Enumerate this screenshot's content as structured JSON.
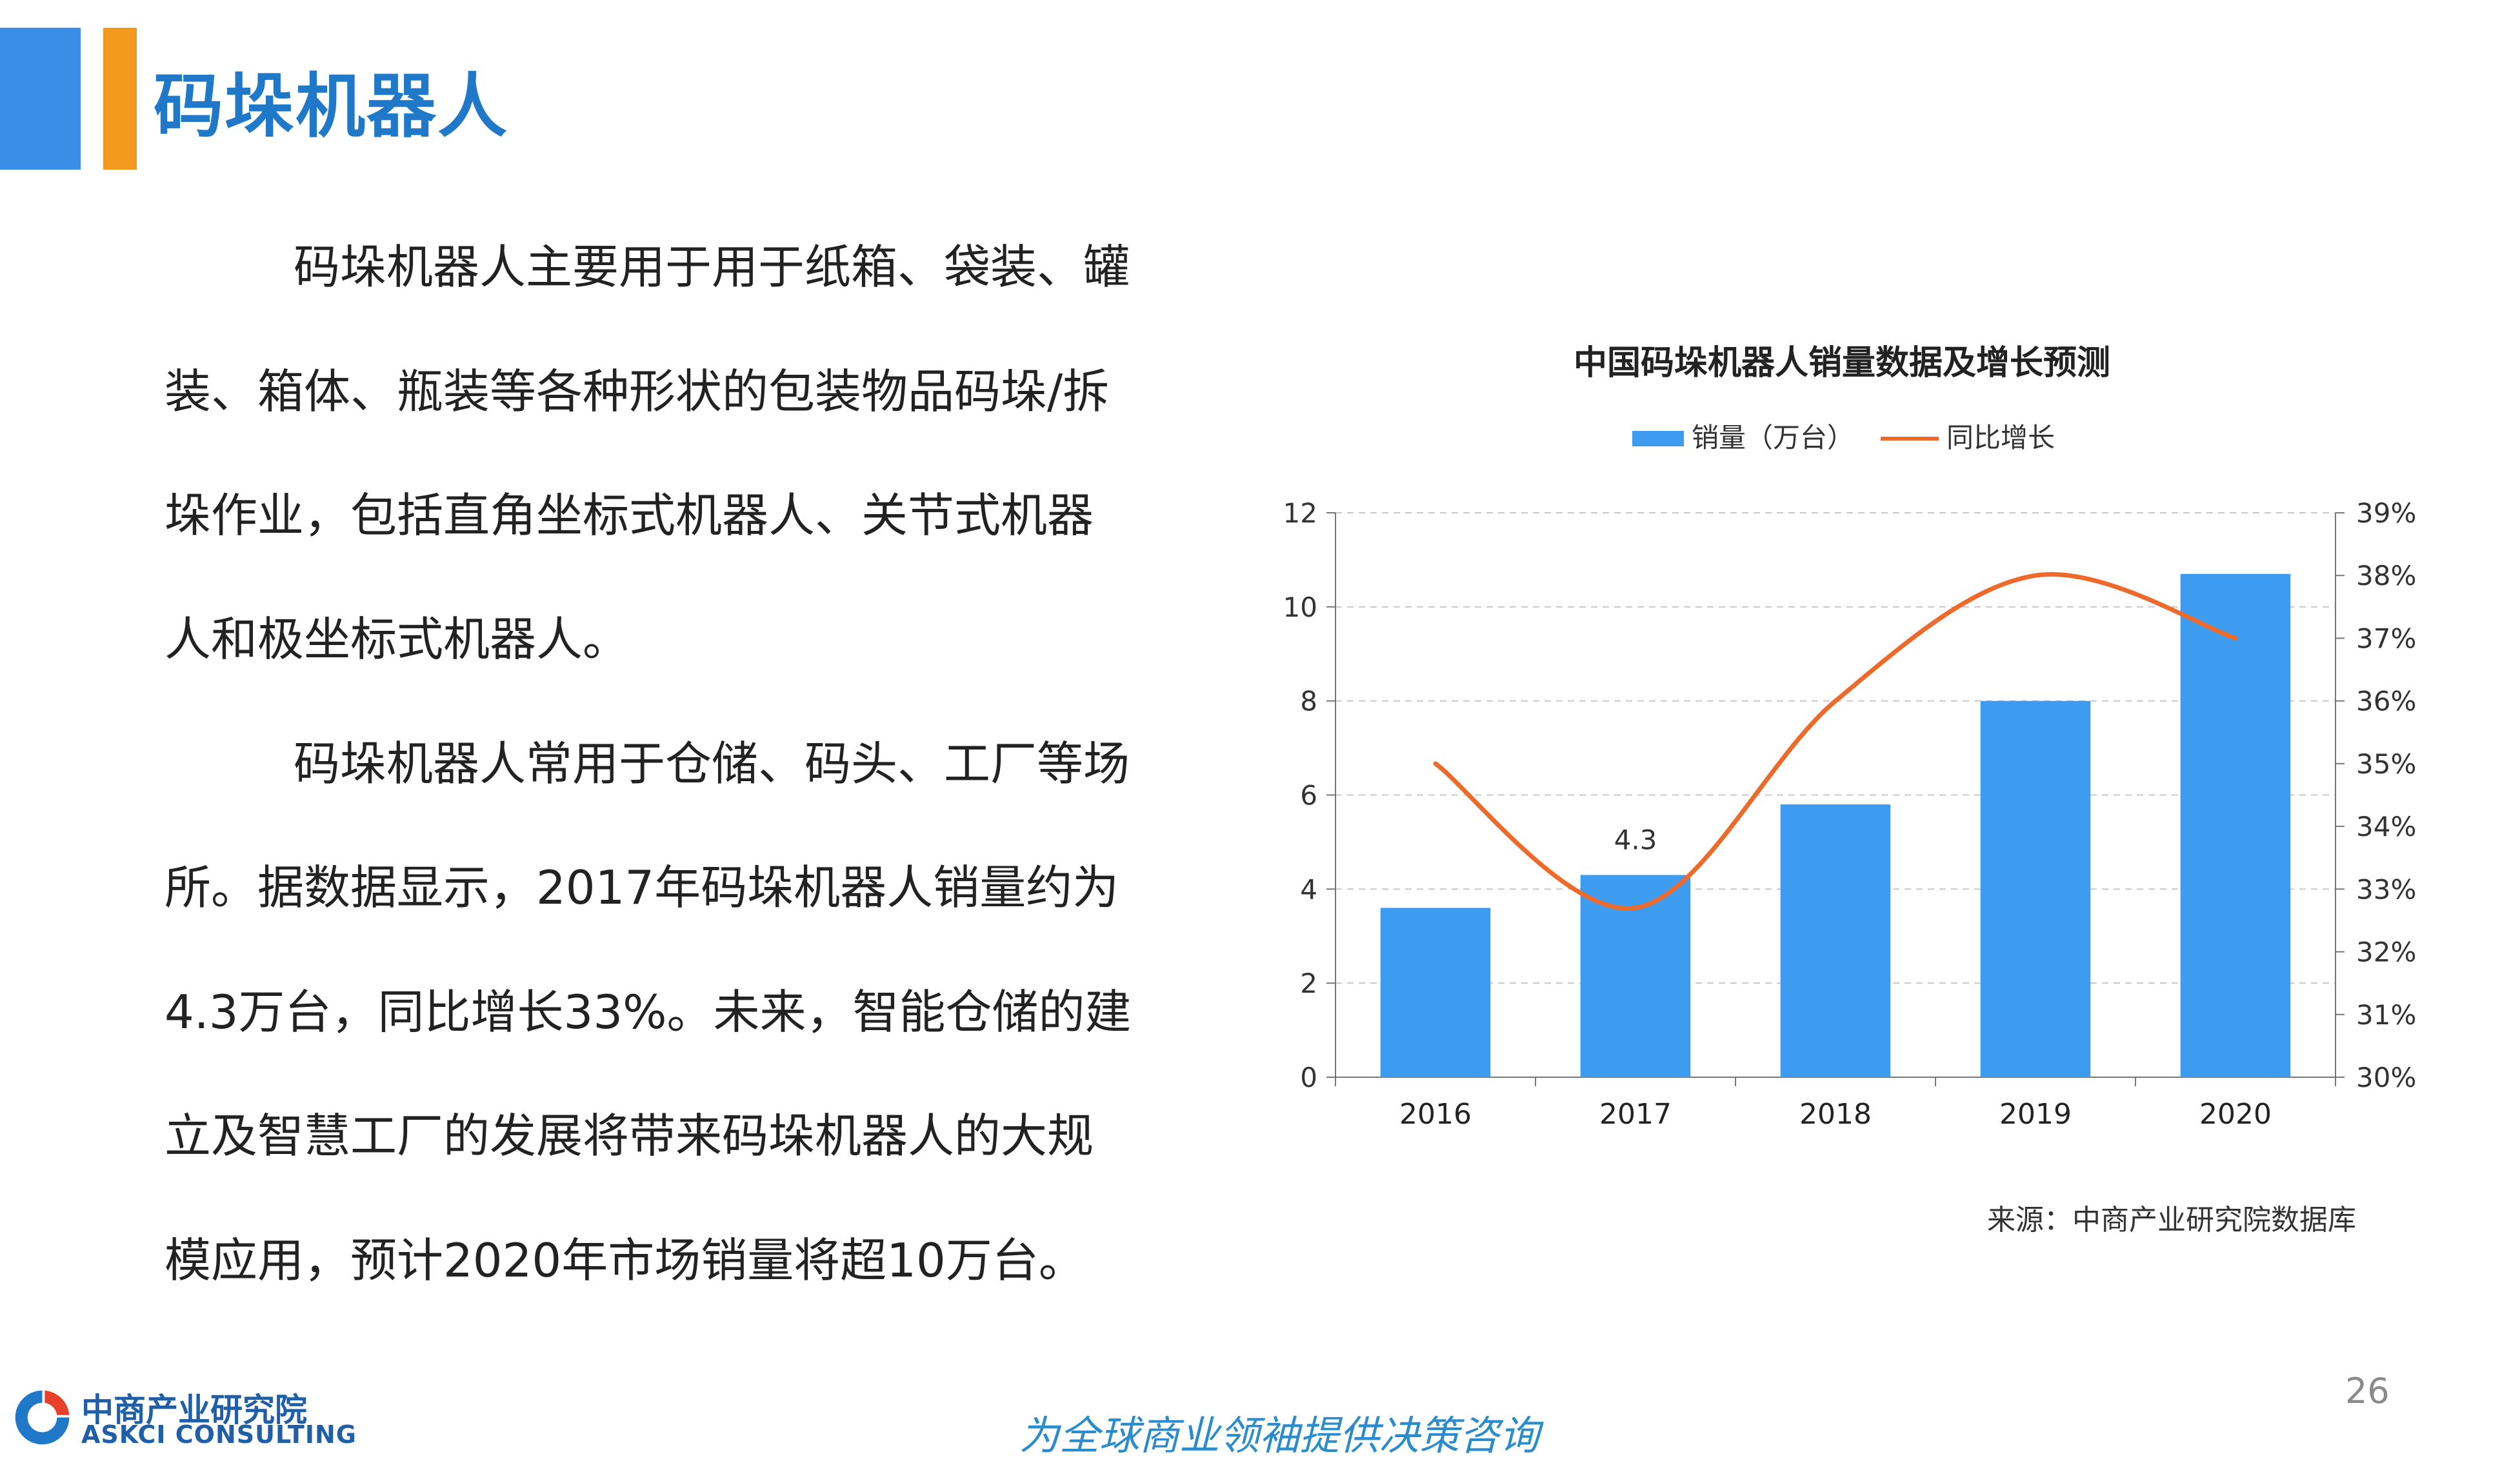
{
  "slide": {
    "title": "码垛机器人",
    "paragraphs": [
      "码垛机器人主要用于用于纸箱、袋装、罐",
      "装、箱体、瓶装等各种形状的包装物品码垛/拆",
      "垛作业，包括直角坐标式机器人、关节式机器",
      "人和极坐标式机器人。",
      "码垛机器人常用于仓储、码头、工厂等场",
      "所。据数据显示，2017年码垛机器人销量约为",
      "4.3万台，同比增长33%。未来，智能仓储的建",
      "立及智慧工厂的发展将带来码垛机器人的大规",
      "模应用，预计2020年市场销量将超10万台。"
    ],
    "source": "来源：中商产业研究院数据库",
    "page_number": "26",
    "slogan": "为全球商业领袖提供决策咨询",
    "logo_cn": "中商产业研究院",
    "logo_en": "ASKCI CONSULTING"
  },
  "colors": {
    "accent_blue": "#3a8ee6",
    "accent_orange": "#f39a1e",
    "bar": "#3d9bf0",
    "line": "#ee6a2a",
    "title_blue": "#1f78c8"
  },
  "chart_data": {
    "type": "bar",
    "title": "中国码垛机器人销量数据及增长预测",
    "categories": [
      "2016",
      "2017",
      "2018",
      "2019",
      "2020"
    ],
    "series": [
      {
        "name": "销量（万台）",
        "type": "bar",
        "axis": "left",
        "values": [
          3.6,
          4.3,
          5.8,
          8.0,
          10.7
        ]
      },
      {
        "name": "同比增长",
        "type": "line",
        "axis": "right",
        "values": [
          35.0,
          32.7,
          36.0,
          38.0,
          37.0
        ]
      }
    ],
    "data_labels": [
      {
        "category": "2017",
        "text": "4.3"
      }
    ],
    "y_left": {
      "min": 0,
      "max": 12,
      "ticks": [
        "0",
        "2",
        "4",
        "6",
        "8",
        "10",
        "12"
      ]
    },
    "y_right": {
      "min": 30,
      "max": 39,
      "ticks": [
        "30%",
        "31%",
        "32%",
        "33%",
        "34%",
        "35%",
        "36%",
        "37%",
        "38%",
        "39%"
      ]
    },
    "grid": true,
    "legend_position": "top-center"
  }
}
